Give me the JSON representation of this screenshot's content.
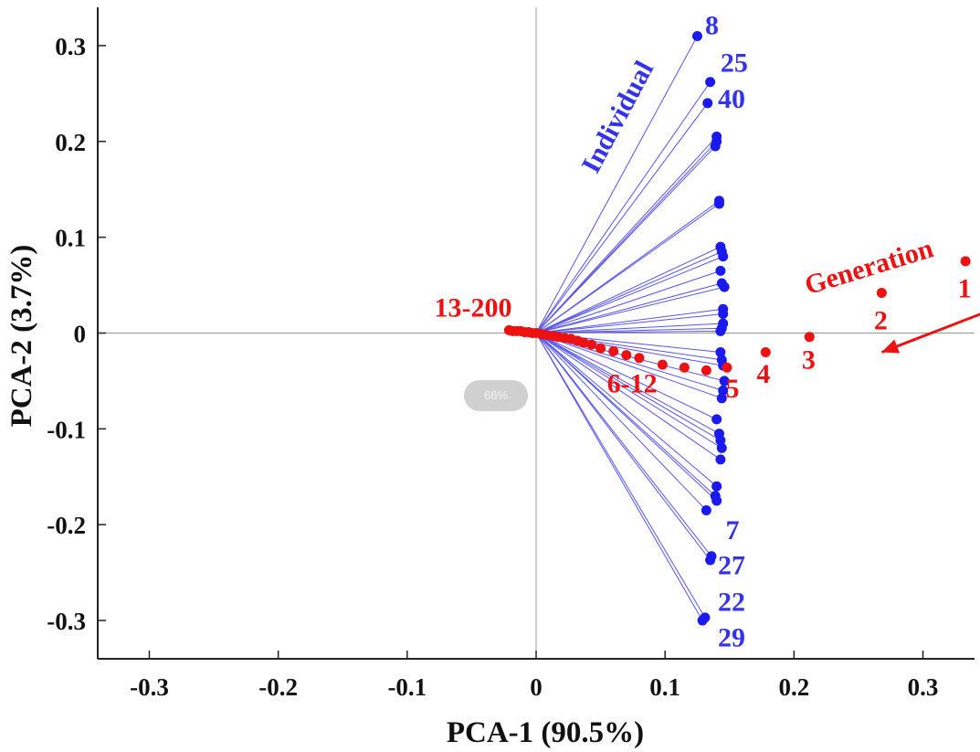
{
  "chart_data": {
    "type": "scatter",
    "title": "",
    "xlabel": "PCA-1 (90.5%)",
    "ylabel": "PCA-2 (3.7%)",
    "xlim": [
      -0.34,
      0.34
    ],
    "ylim": [
      -0.34,
      0.34
    ],
    "xticks": [
      -0.3,
      -0.2,
      -0.1,
      0,
      0.1,
      0.2,
      0.3
    ],
    "xtick_labels": [
      "-0.3",
      "-0.2",
      "-0.1",
      "0",
      "0.1",
      "0.2",
      "0.3"
    ],
    "yticks": [
      0.3,
      0.2,
      0.1,
      0,
      -0.1,
      -0.2,
      -0.3
    ],
    "ytick_labels": [
      "0.3",
      "0.2",
      "0.1",
      "0",
      "-0.1",
      "-0.2",
      "-0.3"
    ],
    "origin_lines": true,
    "series": [
      {
        "name": "Individual",
        "color": "#1a1aee",
        "line_color": "#5555ee",
        "draw_lines_from_origin": true,
        "points": [
          [
            0.125,
            0.31
          ],
          [
            0.135,
            0.262
          ],
          [
            0.133,
            0.24
          ],
          [
            0.14,
            0.205
          ],
          [
            0.14,
            0.2
          ],
          [
            0.139,
            0.195
          ],
          [
            0.142,
            0.138
          ],
          [
            0.142,
            0.135
          ],
          [
            0.143,
            0.09
          ],
          [
            0.144,
            0.085
          ],
          [
            0.145,
            0.08
          ],
          [
            0.143,
            0.065
          ],
          [
            0.144,
            0.052
          ],
          [
            0.146,
            0.048
          ],
          [
            0.145,
            0.025
          ],
          [
            0.145,
            0.02
          ],
          [
            0.145,
            0.01
          ],
          [
            0.144,
            0.005
          ],
          [
            0.143,
            0.002
          ],
          [
            0.143,
            -0.02
          ],
          [
            0.144,
            -0.028
          ],
          [
            0.145,
            -0.034
          ],
          [
            0.146,
            -0.05
          ],
          [
            0.145,
            -0.06
          ],
          [
            0.144,
            -0.068
          ],
          [
            0.14,
            -0.09
          ],
          [
            0.142,
            -0.105
          ],
          [
            0.143,
            -0.112
          ],
          [
            0.144,
            -0.12
          ],
          [
            0.143,
            -0.132
          ],
          [
            0.14,
            -0.16
          ],
          [
            0.139,
            -0.17
          ],
          [
            0.14,
            -0.175
          ],
          [
            0.132,
            -0.185
          ],
          [
            0.136,
            -0.233
          ],
          [
            0.135,
            -0.237
          ],
          [
            0.131,
            -0.297
          ],
          [
            0.129,
            -0.3
          ]
        ]
      },
      {
        "name": "Generation",
        "color": "#ee1111",
        "points": [
          [
            0.333,
            0.075
          ],
          [
            0.268,
            0.042
          ],
          [
            0.212,
            -0.004
          ],
          [
            0.178,
            -0.02
          ],
          [
            0.148,
            -0.036
          ],
          [
            0.132,
            -0.039
          ],
          [
            0.115,
            -0.036
          ],
          [
            0.098,
            -0.033
          ],
          [
            0.08,
            -0.026
          ],
          [
            0.07,
            -0.023
          ],
          [
            0.06,
            -0.019
          ],
          [
            0.05,
            -0.016
          ],
          [
            0.043,
            -0.012
          ],
          [
            0.037,
            -0.01
          ],
          [
            0.032,
            -0.008
          ],
          [
            0.027,
            -0.006
          ],
          [
            0.022,
            -0.005
          ],
          [
            0.017,
            -0.004
          ],
          [
            0.013,
            -0.003
          ],
          [
            0.008,
            -0.002
          ],
          [
            0.004,
            -0.001
          ],
          [
            0.0,
            0.0
          ],
          [
            -0.003,
            0.0
          ],
          [
            -0.006,
            0.001
          ],
          [
            -0.009,
            0.001
          ],
          [
            -0.012,
            0.002
          ],
          [
            -0.015,
            0.002
          ],
          [
            -0.018,
            0.002
          ],
          [
            -0.021,
            0.003
          ]
        ]
      }
    ],
    "annotations": {
      "individual_labels": [
        {
          "text": "8",
          "x": 0.131,
          "y": 0.312
        },
        {
          "text": "25",
          "x": 0.143,
          "y": 0.273
        },
        {
          "text": "40",
          "x": 0.141,
          "y": 0.235
        },
        {
          "text": "7",
          "x": 0.147,
          "y": -0.215
        },
        {
          "text": "27",
          "x": 0.141,
          "y": -0.252
        },
        {
          "text": "22",
          "x": 0.141,
          "y": -0.29
        },
        {
          "text": "29",
          "x": 0.141,
          "y": -0.327
        }
      ],
      "generation_labels": [
        {
          "text": "1",
          "x": 0.327,
          "y": 0.037
        },
        {
          "text": "2",
          "x": 0.262,
          "y": 0.004
        },
        {
          "text": "3",
          "x": 0.206,
          "y": -0.037
        },
        {
          "text": "4",
          "x": 0.171,
          "y": -0.052
        },
        {
          "text": "5",
          "x": 0.147,
          "y": -0.067
        },
        {
          "text": "6-12",
          "x": 0.055,
          "y": -0.062
        },
        {
          "text": "13-200",
          "x": -0.079,
          "y": 0.017
        }
      ],
      "individual_title": {
        "text": "Individual",
        "x": 0.047,
        "y": 0.165,
        "angle": -62
      },
      "generation_title": {
        "text": "Generation",
        "x": 0.211,
        "y": 0.04,
        "angle": -17
      },
      "arrow": {
        "from": [
          0.345,
          0.02
        ],
        "to": [
          0.268,
          -0.02
        ],
        "color": "#ee1111"
      }
    }
  },
  "zoom_indicator": "66%"
}
